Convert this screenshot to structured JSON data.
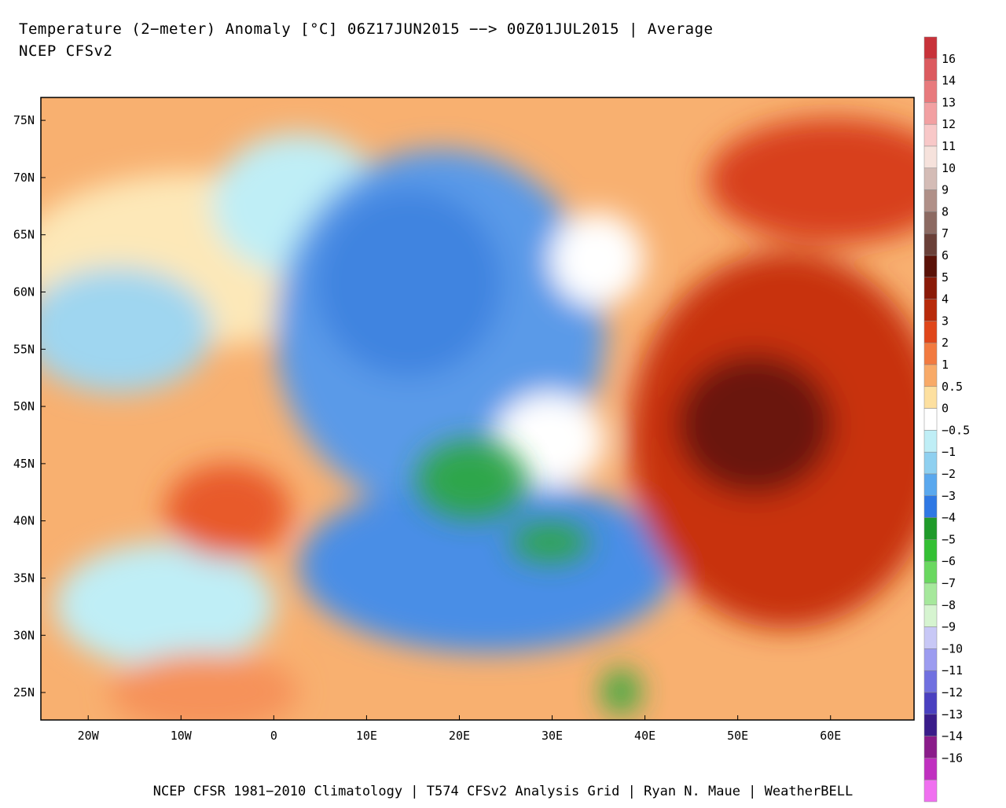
{
  "header": {
    "title": "Temperature (2−meter) Anomaly  [°C] 06Z17JUN2015 −−> 00Z01JUL2015 | Average",
    "subtitle": "NCEP CFSv2"
  },
  "map": {
    "lonlim": [
      -25.1,
      69
    ],
    "latlim": [
      22.6,
      77
    ],
    "lon_labels": [
      {
        "value": -20,
        "label": "20W"
      },
      {
        "value": -10,
        "label": "10W"
      },
      {
        "value": 0,
        "label": "0"
      },
      {
        "value": 10,
        "label": "10E"
      },
      {
        "value": 20,
        "label": "20E"
      },
      {
        "value": 30,
        "label": "30E"
      },
      {
        "value": 40,
        "label": "40E"
      },
      {
        "value": 50,
        "label": "50E"
      },
      {
        "value": 60,
        "label": "60E"
      }
    ],
    "lat_labels": [
      {
        "value": 75,
        "label": "75N"
      },
      {
        "value": 70,
        "label": "70N"
      },
      {
        "value": 65,
        "label": "65N"
      },
      {
        "value": 60,
        "label": "60N"
      },
      {
        "value": 55,
        "label": "55N"
      },
      {
        "value": 50,
        "label": "50N"
      },
      {
        "value": 45,
        "label": "45N"
      },
      {
        "value": 40,
        "label": "40N"
      },
      {
        "value": 35,
        "label": "35N"
      },
      {
        "value": 30,
        "label": "30N"
      },
      {
        "value": 25,
        "label": "25N"
      }
    ]
  },
  "colorbar": {
    "labels": [
      "16",
      "14",
      "13",
      "12",
      "11",
      "10",
      "9",
      "8",
      "7",
      "6",
      "5",
      "4",
      "3",
      "2",
      "1",
      "0.5",
      "0",
      "−0.5",
      "−1",
      "−2",
      "−3",
      "−4",
      "−5",
      "−6",
      "−7",
      "−8",
      "−9",
      "−10",
      "−11",
      "−12",
      "−13",
      "−14",
      "−16"
    ],
    "colors": [
      "#c8323a",
      "#dc5a5f",
      "#e87a7d",
      "#f2a0a2",
      "#f8c8c8",
      "#f6e2dc",
      "#d4bcb6",
      "#b09088",
      "#8c6a62",
      "#6a4038",
      "#5a1208",
      "#8a1a08",
      "#b82a0a",
      "#e0461a",
      "#f27a40",
      "#f8aa68",
      "#fde0a0",
      "#ffffff",
      "#bfeef6",
      "#8fd0f0",
      "#5aa8ee",
      "#2f78e4",
      "#1f9a2a",
      "#34c034",
      "#6ad860",
      "#a6e89c",
      "#d6f4d0",
      "#c8c8f6",
      "#9c9cf0",
      "#7070e0",
      "#4a40c0",
      "#3a1c8a",
      "#8a1c8a",
      "#c030c0",
      "#f070f0"
    ]
  },
  "footer": "NCEP CFSR 1981−2010 Climatology | T574 CFSv2 Analysis Grid | Ryan N. Maue | WeatherBELL"
}
